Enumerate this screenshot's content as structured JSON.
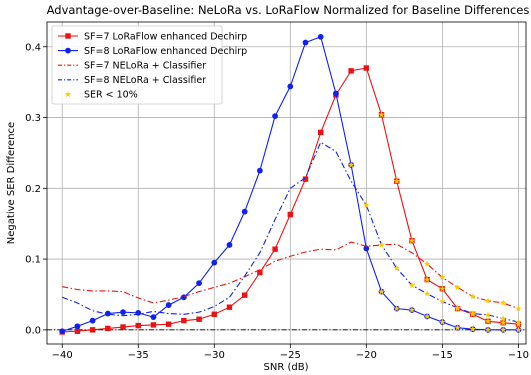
{
  "chart_data": {
    "type": "line",
    "title": "Advantage-over-Baseline: NeLoRa vs. LoRaFlow Normalized for Baseline Differences",
    "xlabel": "SNR (dB)",
    "ylabel": "Negative SER Difference",
    "xlim": [
      -41,
      -9.5
    ],
    "ylim": [
      -0.02,
      0.435
    ],
    "xticks": [
      -40,
      -35,
      -30,
      -25,
      -20,
      -15,
      -10
    ],
    "yticks": [
      0.0,
      0.1,
      0.2,
      0.3,
      0.4
    ],
    "xtick_labels": [
      "−40",
      "−35",
      "−30",
      "−25",
      "−20",
      "−15",
      "−10"
    ],
    "ytick_labels": [
      "0.0",
      "0.1",
      "0.2",
      "0.3",
      "0.4"
    ],
    "grid": true,
    "legend_position": "upper left",
    "baseline_y": 0,
    "x": [
      -40,
      -39,
      -38,
      -37,
      -36,
      -35,
      -34,
      -33,
      -32,
      -31,
      -30,
      -29,
      -28,
      -27,
      -26,
      -25,
      -24,
      -23,
      -22,
      -21,
      -20,
      -19,
      -18,
      -17,
      -16,
      -15,
      -14,
      -13,
      -12,
      -11,
      -10
    ],
    "series": [
      {
        "name": "SF=7 LoRaFlow enhanced Dechirp",
        "color": "#ee1111",
        "linestyle": "solid",
        "marker": "square",
        "values": [
          -0.003,
          -0.002,
          0.0,
          0.002,
          0.004,
          0.006,
          0.007,
          0.008,
          0.013,
          0.015,
          0.022,
          0.032,
          0.049,
          0.081,
          0.114,
          0.163,
          0.213,
          0.279,
          0.332,
          0.366,
          0.37,
          0.304,
          0.21,
          0.126,
          0.071,
          0.058,
          0.03,
          0.022,
          0.012,
          0.01,
          0.008
        ]
      },
      {
        "name": "SF=8 LoRaFlow enhanced Dechirp",
        "color": "#1122ee",
        "linestyle": "solid",
        "marker": "circle",
        "values": [
          -0.002,
          0.005,
          0.013,
          0.023,
          0.025,
          0.024,
          0.018,
          0.035,
          0.046,
          0.066,
          0.095,
          0.12,
          0.167,
          0.225,
          0.302,
          0.344,
          0.406,
          0.414,
          0.334,
          0.233,
          0.115,
          0.054,
          0.03,
          0.028,
          0.019,
          0.011,
          0.003,
          0.001,
          0.0,
          0.0,
          0.0
        ]
      },
      {
        "name": "SF=7 NELoRa + Classifier",
        "color": "#ee1111",
        "linestyle": "dashdot",
        "marker": "none",
        "values": [
          0.061,
          0.057,
          0.055,
          0.055,
          0.054,
          0.045,
          0.038,
          0.042,
          0.047,
          0.054,
          0.06,
          0.066,
          0.075,
          0.085,
          0.097,
          0.104,
          0.11,
          0.114,
          0.113,
          0.124,
          0.118,
          0.12,
          0.121,
          0.109,
          0.093,
          0.074,
          0.06,
          0.047,
          0.041,
          0.038,
          0.03
        ]
      },
      {
        "name": "SF=8 NELoRa + Classifier",
        "color": "#1122ee",
        "linestyle": "dashdot",
        "marker": "none",
        "values": [
          0.046,
          0.038,
          0.027,
          0.022,
          0.02,
          0.022,
          0.026,
          0.023,
          0.022,
          0.025,
          0.033,
          0.046,
          0.076,
          0.109,
          0.156,
          0.2,
          0.215,
          0.265,
          0.252,
          0.21,
          0.176,
          0.12,
          0.087,
          0.063,
          0.051,
          0.04,
          0.031,
          0.023,
          0.021,
          0.016,
          0.011
        ]
      },
      {
        "name": "SER < 10%",
        "color": "#ffc800",
        "linestyle": "none",
        "marker": "star",
        "points": [
          [
            -21,
            0.233
          ],
          [
            -20,
            0.176
          ],
          [
            -19,
            0.12
          ],
          [
            -18,
            0.087
          ],
          [
            -17,
            0.063
          ],
          [
            -16,
            0.051
          ],
          [
            -15,
            0.04
          ],
          [
            -14,
            0.031
          ],
          [
            -13,
            0.023
          ],
          [
            -12,
            0.021
          ],
          [
            -11,
            0.016
          ],
          [
            -10,
            0.011
          ],
          [
            -19,
            0.054
          ],
          [
            -18,
            0.03
          ],
          [
            -17,
            0.028
          ],
          [
            -16,
            0.019
          ],
          [
            -15,
            0.011
          ],
          [
            -14,
            0.003
          ],
          [
            -13,
            0.001
          ],
          [
            -12,
            0.0
          ],
          [
            -11,
            0.0
          ],
          [
            -10,
            0.0
          ],
          [
            -19,
            0.304
          ],
          [
            -18,
            0.21
          ],
          [
            -17,
            0.126
          ],
          [
            -16,
            0.071
          ],
          [
            -15,
            0.058
          ],
          [
            -14,
            0.03
          ],
          [
            -13,
            0.022
          ],
          [
            -12,
            0.012
          ],
          [
            -11,
            0.01
          ],
          [
            -10,
            0.008
          ],
          [
            -16,
            0.093
          ],
          [
            -15,
            0.074
          ],
          [
            -14,
            0.06
          ],
          [
            -13,
            0.047
          ],
          [
            -12,
            0.041
          ],
          [
            -11,
            0.038
          ],
          [
            -10,
            0.03
          ]
        ]
      }
    ]
  }
}
